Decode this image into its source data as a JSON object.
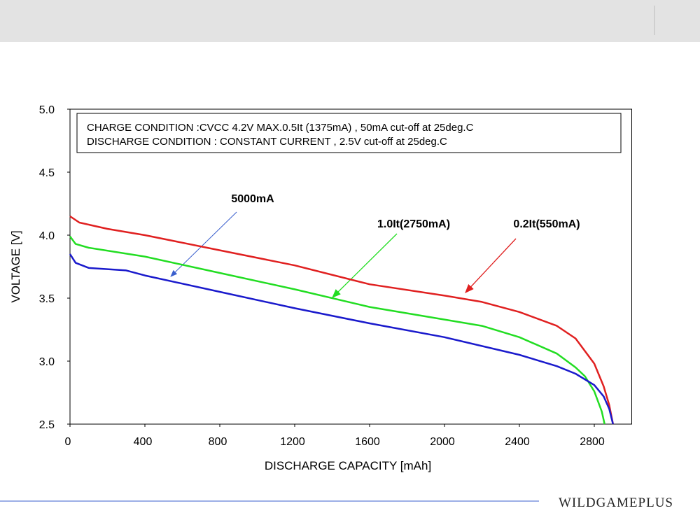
{
  "chart_data": {
    "type": "line",
    "annotations": [
      "CHARGE CONDITION :CVCC 4.2V MAX.0.5It (1375mA) , 50mA cut-off at  25deg.C",
      "DISCHARGE CONDITION : CONSTANT CURRENT , 2.5V cut-off at  25deg.C"
    ],
    "x_label": "DISCHARGE CAPACITY  [mAh]",
    "y_label": "VOLTAGE  [V]",
    "xlim": [
      0,
      3000
    ],
    "xticks": [
      0,
      400,
      800,
      1200,
      1600,
      2000,
      2400,
      2800
    ],
    "ylim": [
      2.5,
      5.0
    ],
    "yticks": [
      {
        "value": 2.5,
        "label": "2.5"
      },
      {
        "value": 3.0,
        "label": "3.0"
      },
      {
        "value": 3.5,
        "label": "3.5"
      },
      {
        "value": 4.0,
        "label": "4.0"
      },
      {
        "value": 4.5,
        "label": "4.5"
      },
      {
        "value": 5.0,
        "label": "5.0"
      }
    ],
    "grid": false,
    "series": [
      {
        "name": "0.2It(550mA)",
        "color": "#e02020",
        "x": [
          0,
          50,
          200,
          400,
          800,
          1200,
          1600,
          2000,
          2200,
          2400,
          2600,
          2700,
          2800,
          2850,
          2880,
          2900
        ],
        "values": [
          4.15,
          4.1,
          4.05,
          4.0,
          3.88,
          3.76,
          3.61,
          3.52,
          3.47,
          3.39,
          3.28,
          3.18,
          2.98,
          2.8,
          2.65,
          2.5
        ]
      },
      {
        "name": "1.0It(2750mA)",
        "color": "#22dd22",
        "x": [
          0,
          30,
          100,
          400,
          800,
          1200,
          1600,
          2000,
          2200,
          2400,
          2600,
          2700,
          2750,
          2800,
          2840,
          2855
        ],
        "values": [
          3.99,
          3.93,
          3.9,
          3.83,
          3.7,
          3.57,
          3.43,
          3.33,
          3.28,
          3.19,
          3.06,
          2.95,
          2.88,
          2.76,
          2.6,
          2.5
        ]
      },
      {
        "name": "5000mA",
        "color": "#1a1acc",
        "x": [
          0,
          30,
          100,
          300,
          400,
          800,
          1200,
          1600,
          2000,
          2400,
          2600,
          2700,
          2800,
          2850,
          2880,
          2900
        ],
        "values": [
          3.85,
          3.78,
          3.74,
          3.72,
          3.68,
          3.55,
          3.42,
          3.3,
          3.19,
          3.05,
          2.96,
          2.9,
          2.81,
          2.72,
          2.62,
          2.5
        ]
      }
    ]
  },
  "watermark": "WILDGAMEPLUS"
}
